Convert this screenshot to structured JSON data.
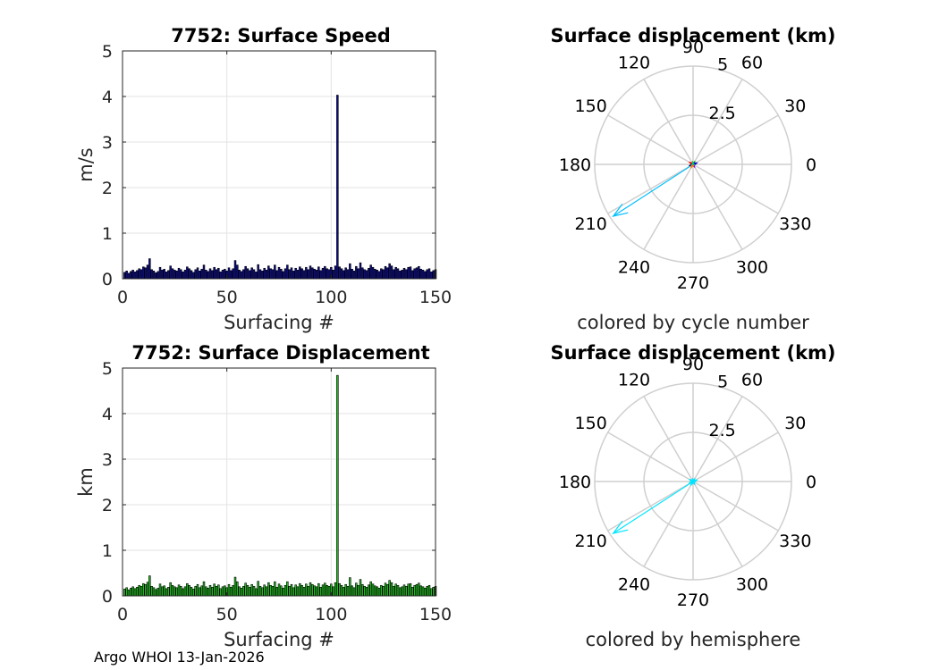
{
  "footer": "Argo WHOI 13-Jan-2026",
  "chart_data": [
    {
      "type": "bar",
      "title": "7752: Surface Speed",
      "xlabel": "Surfacing #",
      "ylabel": "m/s",
      "xlim": [
        0,
        150
      ],
      "ylim": [
        0,
        5
      ],
      "xticks": [
        0,
        50,
        100,
        150
      ],
      "yticks": [
        0,
        1,
        2,
        3,
        4,
        5
      ],
      "grid": true,
      "bar_color": "#0b0b8c",
      "categories_start": 1,
      "values": [
        0.14,
        0.17,
        0.12,
        0.16,
        0.19,
        0.15,
        0.18,
        0.22,
        0.2,
        0.26,
        0.24,
        0.3,
        0.44,
        0.2,
        0.17,
        0.13,
        0.16,
        0.25,
        0.19,
        0.21,
        0.15,
        0.18,
        0.28,
        0.22,
        0.19,
        0.17,
        0.23,
        0.2,
        0.15,
        0.19,
        0.26,
        0.22,
        0.18,
        0.14,
        0.2,
        0.24,
        0.17,
        0.21,
        0.3,
        0.19,
        0.16,
        0.22,
        0.18,
        0.25,
        0.2,
        0.23,
        0.15,
        0.19,
        0.21,
        0.17,
        0.24,
        0.18,
        0.22,
        0.4,
        0.3,
        0.19,
        0.16,
        0.2,
        0.27,
        0.22,
        0.18,
        0.24,
        0.2,
        0.15,
        0.31,
        0.2,
        0.17,
        0.23,
        0.19,
        0.28,
        0.22,
        0.2,
        0.3,
        0.18,
        0.25,
        0.21,
        0.16,
        0.22,
        0.3,
        0.2,
        0.24,
        0.17,
        0.23,
        0.19,
        0.26,
        0.22,
        0.18,
        0.25,
        0.2,
        0.28,
        0.24,
        0.21,
        0.19,
        0.26,
        0.18,
        0.23,
        0.27,
        0.22,
        0.2,
        0.25,
        0.19,
        0.28,
        4.03,
        0.26,
        0.22,
        0.18,
        0.24,
        0.2,
        0.33,
        0.21,
        0.17,
        0.27,
        0.22,
        0.35,
        0.24,
        0.2,
        0.18,
        0.23,
        0.3,
        0.25,
        0.21,
        0.19,
        0.16,
        0.22,
        0.2,
        0.27,
        0.24,
        0.33,
        0.28,
        0.2,
        0.25,
        0.22,
        0.17,
        0.19,
        0.23,
        0.2,
        0.25,
        0.26,
        0.18,
        0.22,
        0.24,
        0.27,
        0.21,
        0.19,
        0.16,
        0.2,
        0.22,
        0.15,
        0.18,
        0.2
      ]
    },
    {
      "type": "polar",
      "title": "Surface displacement (km)",
      "caption": "colored by cycle number",
      "rmax": 5,
      "rticks": [
        2.5,
        5
      ],
      "rtick_labels": [
        "2.5",
        "5"
      ],
      "angle_ticks": [
        0,
        30,
        60,
        90,
        120,
        150,
        180,
        210,
        240,
        270,
        300,
        330
      ],
      "grid": true,
      "vectors": [
        {
          "angle": 213,
          "length": 4.84,
          "color": "#00bfff"
        },
        {
          "angle": 150,
          "length": 0.2,
          "color": "#ff0000"
        },
        {
          "angle": 60,
          "length": 0.15,
          "color": "#00a000"
        },
        {
          "angle": 20,
          "length": 0.2,
          "color": "#0000cc"
        },
        {
          "angle": 200,
          "length": 0.18,
          "color": "#000088"
        },
        {
          "angle": 300,
          "length": 0.15,
          "color": "#8000ff"
        },
        {
          "angle": 240,
          "length": 0.2,
          "color": "#ff8000"
        },
        {
          "angle": 100,
          "length": 0.12,
          "color": "#00cc66"
        }
      ]
    },
    {
      "type": "bar",
      "title": "7752: Surface Displacement",
      "xlabel": "Surfacing #",
      "ylabel": "km",
      "xlim": [
        0,
        150
      ],
      "ylim": [
        0,
        5
      ],
      "xticks": [
        0,
        50,
        100,
        150
      ],
      "yticks": [
        0,
        1,
        2,
        3,
        4,
        5
      ],
      "grid": true,
      "bar_color": "#22bb22",
      "categories_start": 1,
      "values": [
        0.15,
        0.18,
        0.13,
        0.17,
        0.2,
        0.16,
        0.19,
        0.23,
        0.21,
        0.27,
        0.25,
        0.3,
        0.44,
        0.21,
        0.18,
        0.14,
        0.17,
        0.26,
        0.2,
        0.22,
        0.16,
        0.19,
        0.29,
        0.23,
        0.2,
        0.18,
        0.24,
        0.21,
        0.16,
        0.2,
        0.27,
        0.23,
        0.19,
        0.15,
        0.21,
        0.25,
        0.18,
        0.22,
        0.31,
        0.2,
        0.17,
        0.23,
        0.19,
        0.26,
        0.21,
        0.24,
        0.16,
        0.2,
        0.22,
        0.18,
        0.25,
        0.19,
        0.23,
        0.41,
        0.31,
        0.2,
        0.17,
        0.21,
        0.28,
        0.23,
        0.19,
        0.25,
        0.21,
        0.16,
        0.32,
        0.21,
        0.18,
        0.24,
        0.2,
        0.29,
        0.23,
        0.21,
        0.31,
        0.19,
        0.26,
        0.22,
        0.17,
        0.23,
        0.31,
        0.21,
        0.25,
        0.18,
        0.24,
        0.2,
        0.27,
        0.23,
        0.19,
        0.26,
        0.21,
        0.29,
        0.25,
        0.22,
        0.2,
        0.27,
        0.19,
        0.24,
        0.28,
        0.23,
        0.21,
        0.26,
        0.2,
        0.29,
        4.84,
        0.27,
        0.23,
        0.19,
        0.25,
        0.21,
        0.4,
        0.22,
        0.18,
        0.28,
        0.23,
        0.36,
        0.25,
        0.21,
        0.19,
        0.24,
        0.31,
        0.26,
        0.22,
        0.2,
        0.17,
        0.23,
        0.21,
        0.28,
        0.25,
        0.34,
        0.29,
        0.21,
        0.26,
        0.23,
        0.18,
        0.2,
        0.24,
        0.21,
        0.26,
        0.27,
        0.19,
        0.23,
        0.25,
        0.28,
        0.22,
        0.2,
        0.17,
        0.21,
        0.23,
        0.16,
        0.19,
        0.21
      ]
    },
    {
      "type": "polar",
      "title": "Surface displacement (km)",
      "caption": "colored by hemisphere",
      "rmax": 5,
      "rticks": [
        2.5,
        5
      ],
      "rtick_labels": [
        "2.5",
        "5"
      ],
      "angle_ticks": [
        0,
        30,
        60,
        90,
        120,
        150,
        180,
        210,
        240,
        270,
        300,
        330
      ],
      "grid": true,
      "vectors": [
        {
          "angle": 213,
          "length": 4.84,
          "color": "#00e5ff"
        },
        {
          "angle": 150,
          "length": 0.2,
          "color": "#00e5ff"
        },
        {
          "angle": 60,
          "length": 0.15,
          "color": "#00e5ff"
        },
        {
          "angle": 20,
          "length": 0.2,
          "color": "#00e5ff"
        },
        {
          "angle": 200,
          "length": 0.18,
          "color": "#00e5ff"
        },
        {
          "angle": 300,
          "length": 0.15,
          "color": "#00e5ff"
        },
        {
          "angle": 240,
          "length": 0.2,
          "color": "#00e5ff"
        },
        {
          "angle": 100,
          "length": 0.12,
          "color": "#00e5ff"
        }
      ]
    }
  ]
}
